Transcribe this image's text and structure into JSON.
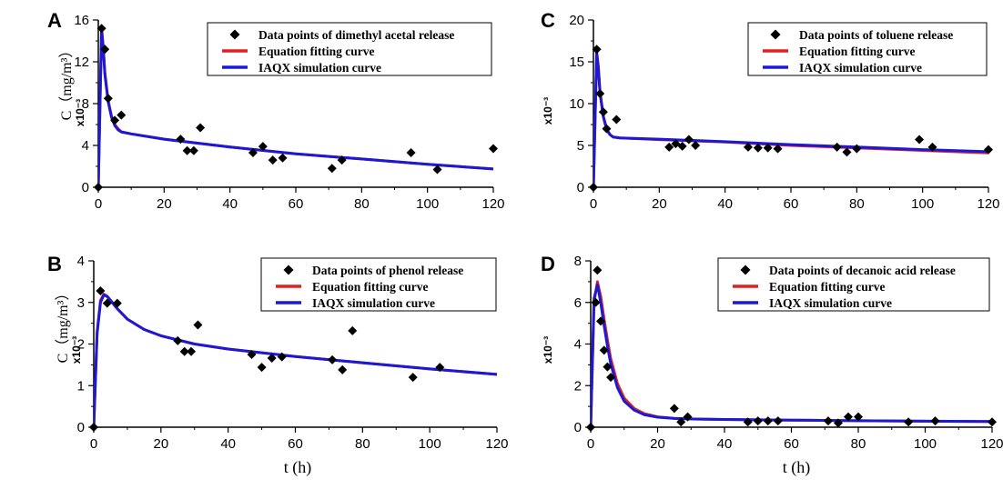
{
  "chart_data": [
    {
      "type": "line",
      "panel_label": "A",
      "ylabel": "C（mg/m³）",
      "y_multiplier": "x10⁻³",
      "xlabel": "",
      "xlim": [
        0,
        120
      ],
      "ylim": [
        0,
        16
      ],
      "xticks": [
        0,
        20,
        40,
        60,
        80,
        100,
        120
      ],
      "yticks": [
        0,
        4,
        8,
        12,
        16
      ],
      "legend_position": "top-right",
      "series": [
        {
          "name": "Data points of dimethyl acetal release",
          "style": "scatter",
          "color": "#000000",
          "x": [
            0,
            1,
            2,
            3,
            5,
            7,
            25,
            27,
            29,
            31,
            47,
            50,
            53,
            56,
            71,
            74,
            95,
            103,
            120
          ],
          "y": [
            0,
            15.2,
            13.2,
            8.5,
            6.4,
            6.9,
            4.6,
            3.5,
            3.5,
            5.7,
            3.3,
            3.9,
            2.6,
            2.8,
            1.8,
            2.6,
            3.3,
            1.7,
            3.7
          ]
        },
        {
          "name": "Equation fitting curve",
          "style": "line",
          "color": "#e02020",
          "x": [
            0,
            1,
            1.5,
            2,
            3,
            4,
            5,
            6,
            7,
            10,
            20,
            40,
            60,
            80,
            100,
            120
          ],
          "y": [
            0,
            15.3,
            13.5,
            11.0,
            8.3,
            6.8,
            6.0,
            5.6,
            5.3,
            5.1,
            4.6,
            3.85,
            3.2,
            2.7,
            2.2,
            1.75
          ]
        },
        {
          "name": "IAQX simulation curve",
          "style": "line",
          "color": "#1a1ad6",
          "x": [
            0,
            1,
            1.5,
            2,
            3,
            4,
            5,
            6,
            7,
            10,
            20,
            40,
            60,
            80,
            100,
            120
          ],
          "y": [
            0,
            15.0,
            13.3,
            10.8,
            8.2,
            6.7,
            5.9,
            5.5,
            5.3,
            5.1,
            4.6,
            3.85,
            3.2,
            2.7,
            2.2,
            1.75
          ]
        }
      ]
    },
    {
      "type": "line",
      "panel_label": "C",
      "ylabel": "",
      "y_multiplier": "x10⁻³",
      "xlabel": "",
      "xlim": [
        0,
        120
      ],
      "ylim": [
        0,
        20
      ],
      "xticks": [
        0,
        20,
        40,
        60,
        80,
        100,
        120
      ],
      "yticks": [
        0,
        5,
        10,
        15,
        20
      ],
      "legend_position": "top-right",
      "series": [
        {
          "name": "Data points of toluene release",
          "style": "scatter",
          "color": "#000000",
          "x": [
            0,
            1,
            2,
            3,
            4,
            7,
            23,
            25,
            27,
            29,
            31,
            47,
            50,
            53,
            56,
            74,
            77,
            80,
            99,
            103,
            120
          ],
          "y": [
            0,
            16.5,
            11.2,
            9.0,
            7.0,
            8.1,
            4.8,
            5.2,
            4.9,
            5.7,
            5.0,
            4.8,
            4.7,
            4.7,
            4.6,
            4.8,
            4.2,
            4.6,
            5.7,
            4.8,
            4.5
          ]
        },
        {
          "name": "Equation fitting curve",
          "style": "line",
          "color": "#e02020",
          "x": [
            0,
            1,
            1.5,
            2,
            3,
            4,
            5,
            6,
            8,
            20,
            40,
            60,
            80,
            100,
            120
          ],
          "y": [
            0,
            16.2,
            14.5,
            11.5,
            8.5,
            7.0,
            6.3,
            6.0,
            5.9,
            5.7,
            5.4,
            5.0,
            4.7,
            4.4,
            4.1
          ]
        },
        {
          "name": "IAQX simulation curve",
          "style": "line",
          "color": "#1a1ad6",
          "x": [
            0,
            1,
            1.5,
            2,
            3,
            4,
            5,
            6,
            8,
            20,
            40,
            60,
            80,
            100,
            120
          ],
          "y": [
            0,
            16.0,
            14.2,
            11.3,
            8.4,
            6.9,
            6.3,
            6.0,
            5.9,
            5.75,
            5.45,
            5.1,
            4.8,
            4.5,
            4.25
          ]
        }
      ]
    },
    {
      "type": "line",
      "panel_label": "B",
      "ylabel": "C（mg/m³）",
      "y_multiplier": "x10⁻³",
      "xlabel": "t (h)",
      "xlim": [
        0,
        120
      ],
      "ylim": [
        0,
        4
      ],
      "xticks": [
        0,
        20,
        40,
        60,
        80,
        100,
        120
      ],
      "yticks": [
        0,
        1,
        2,
        3,
        4
      ],
      "legend_position": "top-right",
      "series": [
        {
          "name": "Data points of phenol release",
          "style": "scatter",
          "color": "#000000",
          "x": [
            0,
            2,
            4,
            7,
            25,
            27,
            29,
            31,
            47,
            50,
            53,
            56,
            71,
            74,
            77,
            95,
            103
          ],
          "y": [
            0,
            3.28,
            2.98,
            2.98,
            2.08,
            1.82,
            1.82,
            2.46,
            1.75,
            1.44,
            1.66,
            1.69,
            1.62,
            1.38,
            2.32,
            1.2,
            1.44
          ]
        },
        {
          "name": "Equation fitting curve",
          "style": "line",
          "color": "#e02020",
          "x": [
            0,
            1,
            2,
            3,
            4,
            5,
            7,
            10,
            15,
            20,
            30,
            40,
            60,
            80,
            100,
            120
          ],
          "y": [
            0,
            2.3,
            3.05,
            3.2,
            3.15,
            3.05,
            2.85,
            2.6,
            2.35,
            2.2,
            2.0,
            1.88,
            1.7,
            1.55,
            1.4,
            1.27
          ]
        },
        {
          "name": "IAQX simulation curve",
          "style": "line",
          "color": "#1a1ad6",
          "x": [
            0,
            1,
            2,
            3,
            4,
            5,
            7,
            10,
            15,
            20,
            30,
            40,
            60,
            80,
            100,
            120
          ],
          "y": [
            0,
            2.25,
            3.0,
            3.18,
            3.14,
            3.05,
            2.85,
            2.6,
            2.35,
            2.2,
            2.0,
            1.88,
            1.7,
            1.55,
            1.4,
            1.27
          ]
        }
      ]
    },
    {
      "type": "line",
      "panel_label": "D",
      "ylabel": "",
      "y_multiplier": "x10⁻³",
      "xlabel": "t (h)",
      "xlim": [
        0,
        120
      ],
      "ylim": [
        0,
        8
      ],
      "xticks": [
        0,
        20,
        40,
        60,
        80,
        100,
        120
      ],
      "yticks": [
        0,
        2,
        4,
        6,
        8
      ],
      "legend_position": "top-right",
      "series": [
        {
          "name": "Data points of decanoic acid release",
          "style": "scatter",
          "color": "#000000",
          "x": [
            0,
            1.5,
            2,
            3,
            4,
            5,
            6,
            25,
            27,
            29,
            47,
            50,
            53,
            56,
            71,
            74,
            77,
            80,
            95,
            103,
            120
          ],
          "y": [
            0,
            6.0,
            7.55,
            5.1,
            3.7,
            2.9,
            2.4,
            0.9,
            0.25,
            0.5,
            0.25,
            0.3,
            0.3,
            0.3,
            0.3,
            0.2,
            0.5,
            0.5,
            0.25,
            0.3,
            0.25
          ]
        },
        {
          "name": "Equation fitting curve",
          "style": "line",
          "color": "#e02020",
          "x": [
            0,
            1,
            2,
            3,
            4,
            5,
            6,
            8,
            10,
            13,
            16,
            20,
            25,
            30,
            40,
            60,
            80,
            100,
            120
          ],
          "y": [
            0,
            6.0,
            7.0,
            6.3,
            5.2,
            4.2,
            3.3,
            2.1,
            1.4,
            0.9,
            0.65,
            0.5,
            0.43,
            0.4,
            0.37,
            0.34,
            0.31,
            0.29,
            0.27
          ]
        },
        {
          "name": "IAQX simulation curve",
          "style": "line",
          "color": "#1a1ad6",
          "x": [
            0,
            1,
            2,
            3,
            4,
            5,
            6,
            8,
            10,
            13,
            16,
            20,
            25,
            30,
            40,
            60,
            80,
            100,
            120
          ],
          "y": [
            0,
            6.2,
            6.85,
            6.0,
            4.9,
            3.9,
            3.05,
            1.9,
            1.25,
            0.82,
            0.6,
            0.48,
            0.42,
            0.4,
            0.37,
            0.34,
            0.31,
            0.29,
            0.27
          ]
        }
      ]
    }
  ]
}
